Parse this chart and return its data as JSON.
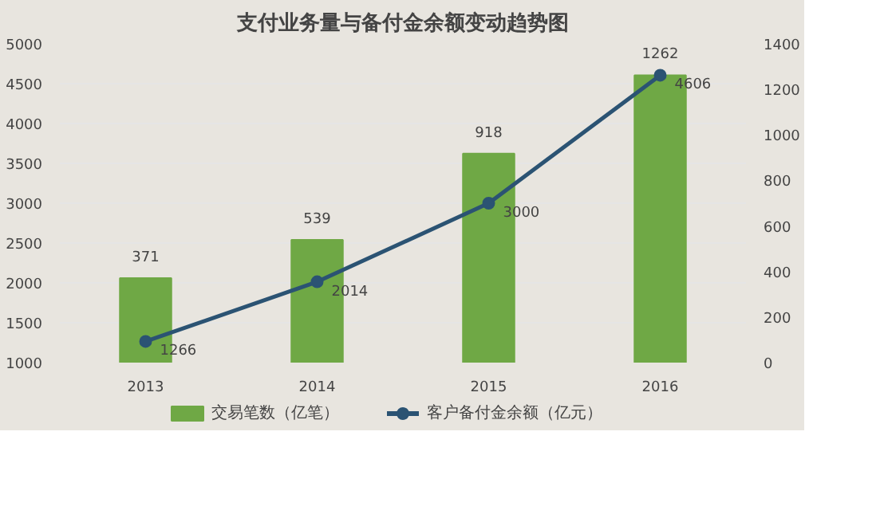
{
  "chart_data": {
    "type": "bar",
    "title": "支付业务量与备付金余额变动趋势图",
    "categories": [
      "2013",
      "2014",
      "2015",
      "2016"
    ],
    "series": [
      {
        "name": "交易笔数（亿笔）",
        "axis": "y2",
        "color": "#6fa845",
        "values": [
          371,
          539,
          918,
          1262
        ]
      },
      {
        "name": "客户备付金余额（亿元）",
        "type": "line",
        "axis": "y",
        "color": "#2b5373",
        "values": [
          1266,
          2014,
          3000,
          4606
        ],
        "marker": "circle"
      }
    ],
    "ylim": [
      1000,
      5000
    ],
    "yticks": [
      1000,
      1500,
      2000,
      2500,
      3000,
      3500,
      4000,
      4500,
      5000
    ],
    "y2lim": [
      0,
      1400
    ],
    "y2ticks": [
      0,
      200,
      400,
      600,
      800,
      1000,
      1200,
      1400
    ],
    "data_labels": true,
    "grid": "y",
    "legend": "bottom"
  }
}
